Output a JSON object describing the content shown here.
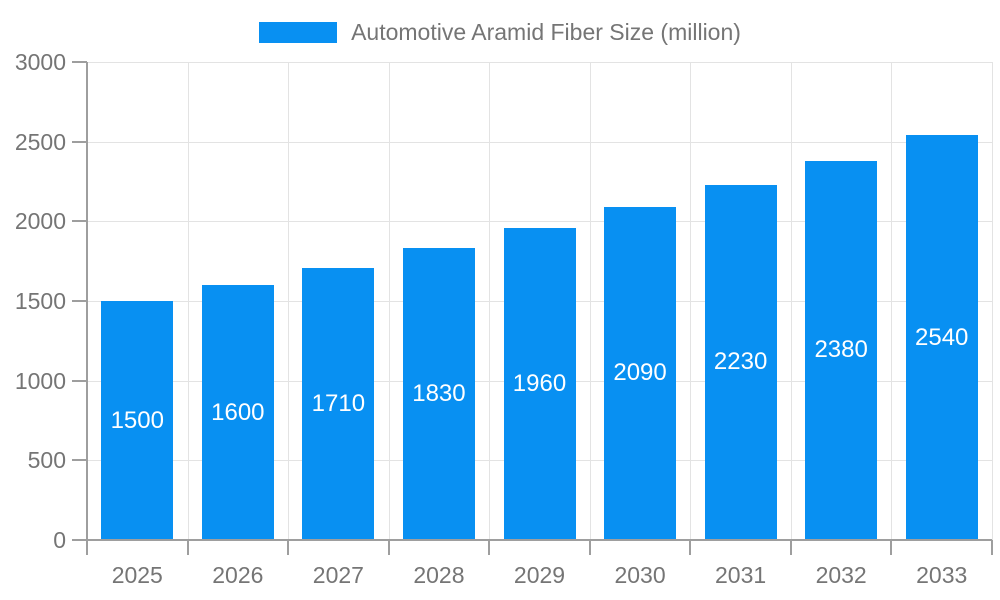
{
  "legend": {
    "label": "Automotive Aramid Fiber Size (million)"
  },
  "chart_data": {
    "type": "bar",
    "title": "Automotive Aramid Fiber Size (million)",
    "series_name": "Automotive Aramid Fiber Size (million)",
    "categories": [
      "2025",
      "2026",
      "2027",
      "2028",
      "2029",
      "2030",
      "2031",
      "2032",
      "2033"
    ],
    "values": [
      1500,
      1600,
      1710,
      1830,
      1960,
      2090,
      2230,
      2380,
      2540
    ],
    "xlabel": "",
    "ylabel": "",
    "ylim": [
      0,
      3000
    ],
    "yticks": [
      0,
      500,
      1000,
      1500,
      2000,
      2500,
      3000
    ],
    "grid": true,
    "legend_position": "top",
    "value_labels": "inside-center",
    "colors": {
      "bar": "#0890f2",
      "value_label": "#ffffff",
      "axis": "#9e9e9e",
      "grid": "#e3e3e3",
      "text": "#757575"
    }
  }
}
